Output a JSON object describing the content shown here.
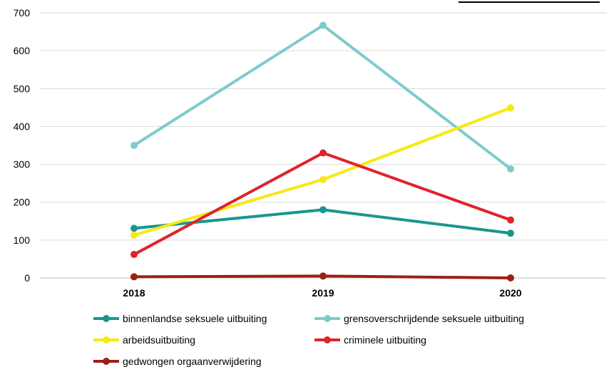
{
  "chart_data": {
    "type": "line",
    "x": [
      "2018",
      "2019",
      "2020"
    ],
    "yticks": [
      "0",
      "100",
      "200",
      "300",
      "400",
      "500",
      "600",
      "700"
    ],
    "ylim": [
      0,
      700
    ],
    "grid": true,
    "legend_position": "bottom",
    "series": [
      {
        "name": "binnenlandse seksuele uitbuiting",
        "color": "#1a9690",
        "values": [
          131,
          180,
          118
        ]
      },
      {
        "name": "grensoverschrijdende seksuele uitbuiting",
        "color": "#7ecbcd",
        "values": [
          350,
          667,
          288
        ]
      },
      {
        "name": "arbeidsuitbuiting",
        "color": "#f5ea14",
        "values": [
          113,
          260,
          449
        ]
      },
      {
        "name": "criminele uitbuiting",
        "color": "#e0232b",
        "values": [
          62,
          330,
          153
        ]
      },
      {
        "name": "gedwongen orgaanverwijdering",
        "color": "#9a2114",
        "values": [
          3,
          5,
          0
        ]
      }
    ]
  }
}
